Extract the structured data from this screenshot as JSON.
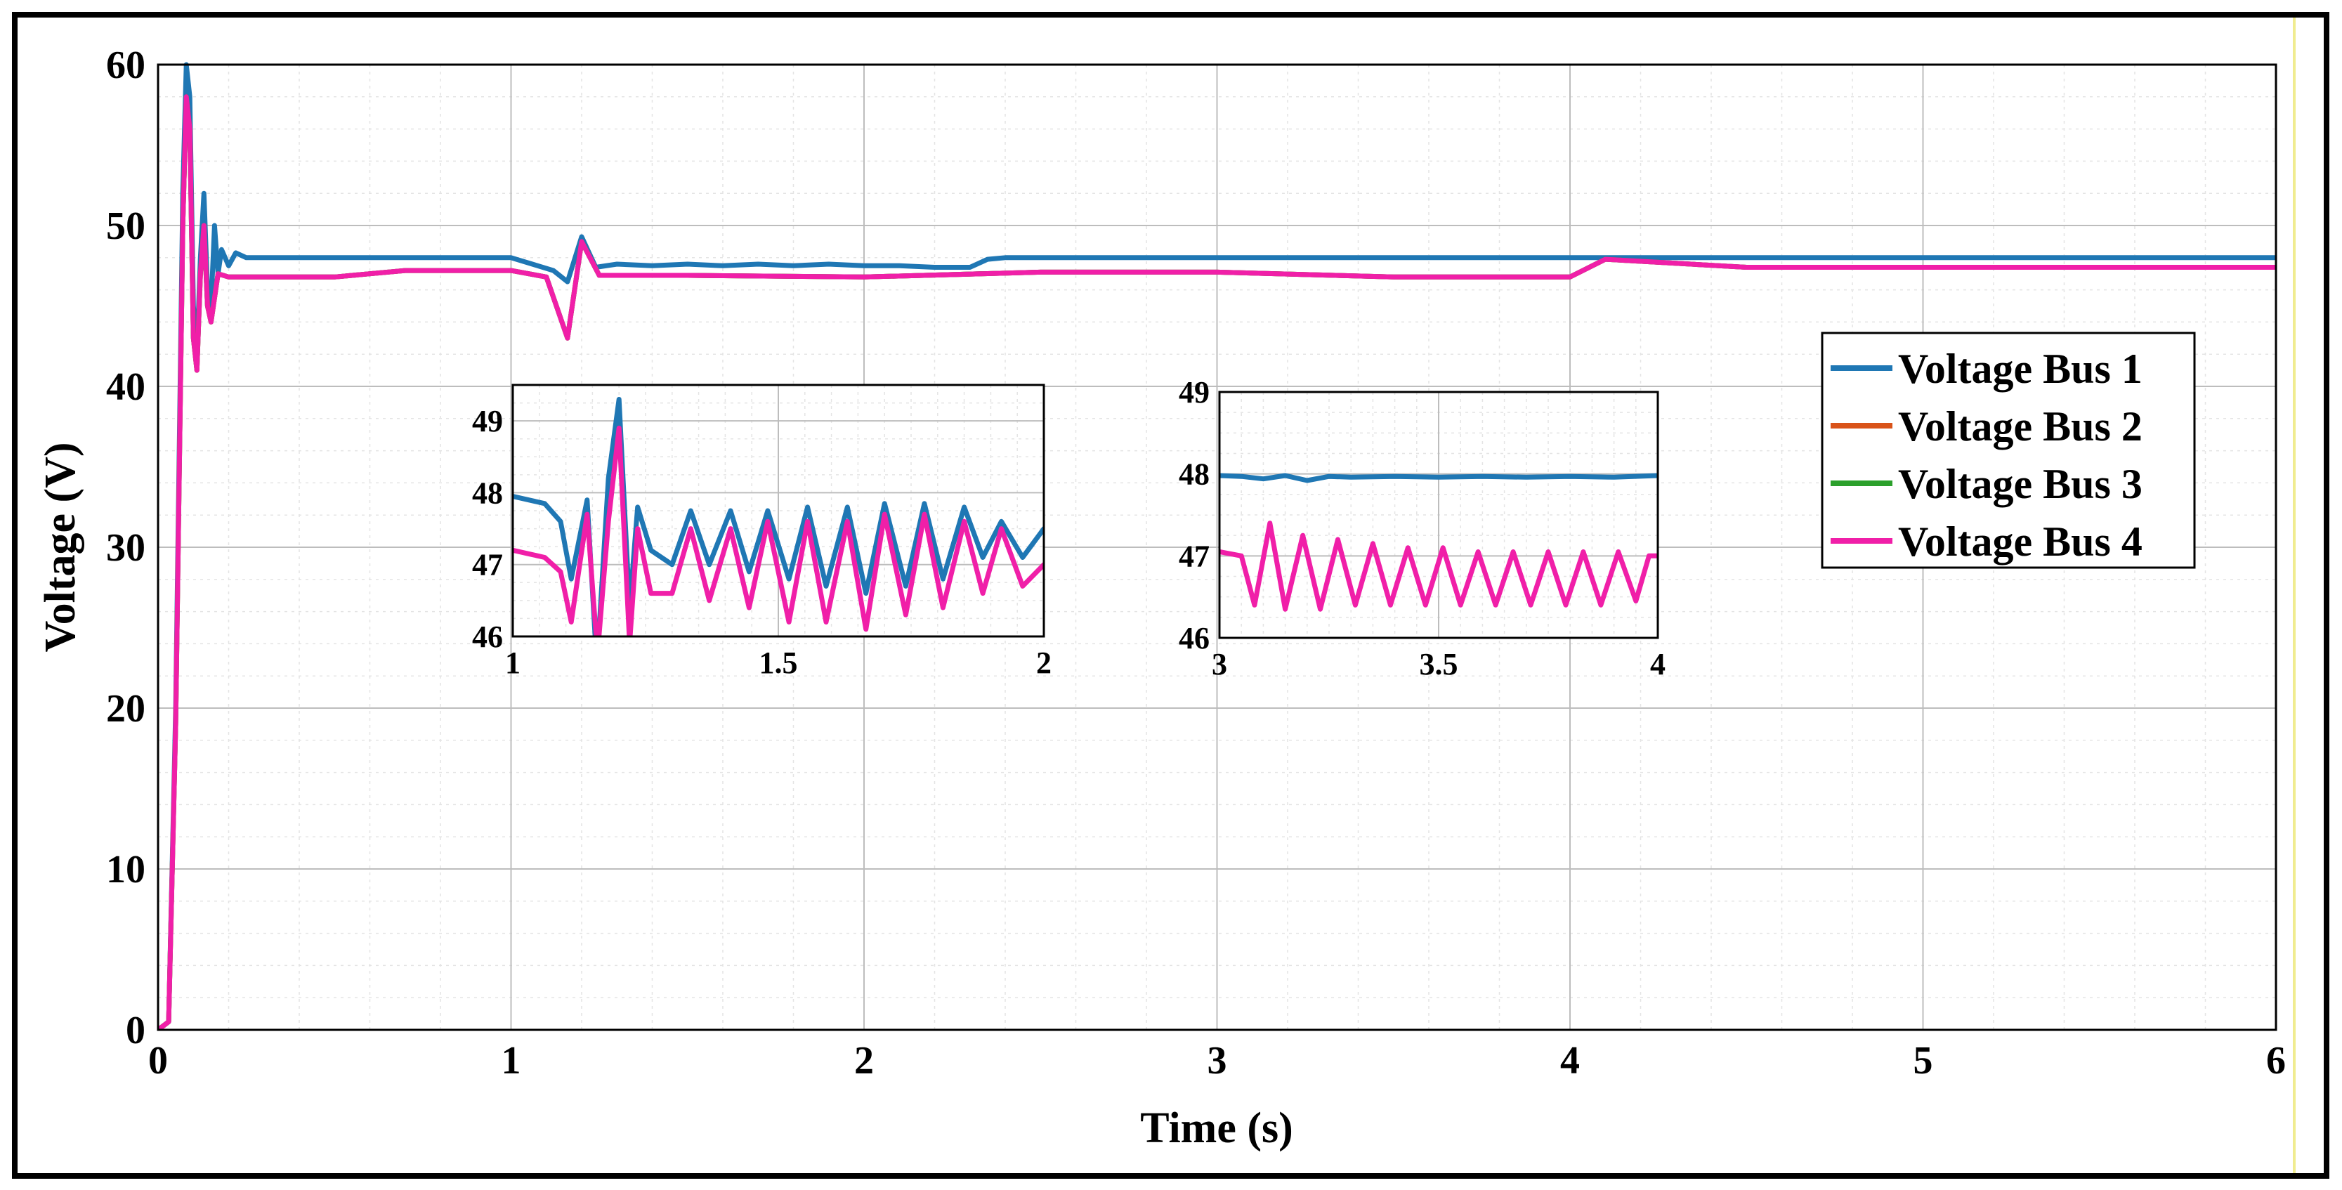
{
  "chart_data": {
    "type": "line",
    "title": "",
    "xlabel": "Time (s)",
    "ylabel": "Voltage (V)",
    "xlim": [
      0,
      6
    ],
    "ylim": [
      0,
      60
    ],
    "x_ticks": [
      0,
      1,
      2,
      3,
      4,
      5,
      6
    ],
    "y_ticks": [
      0,
      10,
      20,
      30,
      40,
      50,
      60
    ],
    "x_tick_labels": [
      "0",
      "1",
      "2",
      "3",
      "4",
      "5",
      "6"
    ],
    "y_tick_labels": [
      "0",
      "10",
      "20",
      "30",
      "40",
      "50",
      "60"
    ],
    "grid": true,
    "legend_position": "right-middle",
    "series": [
      {
        "name": "Voltage Bus 1",
        "color": "#1f77b4",
        "x": [
          0,
          0.03,
          0.05,
          0.07,
          0.08,
          0.09,
          0.1,
          0.11,
          0.12,
          0.13,
          0.14,
          0.15,
          0.16,
          0.17,
          0.18,
          0.2,
          0.22,
          0.25,
          0.3,
          0.5,
          1.0,
          1.12,
          1.16,
          1.2,
          1.24,
          1.3,
          1.4,
          1.5,
          1.6,
          1.7,
          1.8,
          1.9,
          2.0,
          2.1,
          2.2,
          2.3,
          2.35,
          2.4,
          3.0,
          3.5,
          4.0,
          4.5,
          5.0,
          5.5,
          6.0
        ],
        "values": [
          0,
          0.5,
          20,
          52,
          60,
          58,
          45,
          42,
          48,
          52,
          46,
          45,
          50,
          47,
          48.5,
          47.5,
          48.3,
          48,
          48,
          48,
          48,
          47.2,
          46.5,
          49.3,
          47.4,
          47.6,
          47.5,
          47.6,
          47.5,
          47.6,
          47.5,
          47.6,
          47.5,
          47.5,
          47.4,
          47.4,
          47.9,
          48,
          48,
          48,
          48,
          48,
          48,
          48,
          48
        ]
      },
      {
        "name": "Voltage Bus 2",
        "color": "#d95319",
        "x": [
          0,
          0.03,
          0.05,
          0.07,
          0.08,
          0.09,
          0.1,
          0.11,
          0.12,
          0.13,
          0.14,
          0.15,
          0.17,
          0.2,
          0.25,
          0.5,
          0.7,
          1.0,
          1.1,
          1.16,
          1.2,
          1.25,
          1.5,
          2.0,
          2.5,
          3.0,
          3.5,
          4.0,
          4.1,
          4.5,
          5.0,
          6.0
        ],
        "values": [
          0,
          0.5,
          19,
          50,
          58,
          56,
          43,
          41,
          47,
          50,
          45,
          44,
          47,
          46.8,
          46.8,
          46.8,
          47.2,
          47.2,
          46.8,
          43,
          49,
          46.9,
          46.9,
          46.8,
          47.1,
          47.1,
          46.8,
          46.8,
          47.9,
          47.4,
          47.4,
          47.4
        ]
      },
      {
        "name": "Voltage Bus 3",
        "color": "#2ca02c",
        "x": [
          0,
          0.03,
          0.05,
          0.07,
          0.08,
          0.09,
          0.1,
          0.11,
          0.12,
          0.13,
          0.14,
          0.15,
          0.17,
          0.2,
          0.25,
          0.5,
          0.7,
          1.0,
          1.1,
          1.16,
          1.2,
          1.25,
          1.5,
          2.0,
          2.5,
          3.0,
          3.5,
          4.0,
          4.1,
          4.5,
          5.0,
          6.0
        ],
        "values": [
          0,
          0.5,
          19,
          50,
          58,
          56,
          43,
          41,
          47,
          50,
          45,
          44,
          47,
          46.8,
          46.8,
          46.8,
          47.2,
          47.2,
          46.8,
          43,
          49,
          46.9,
          46.9,
          46.8,
          47.1,
          47.1,
          46.8,
          46.8,
          47.9,
          47.4,
          47.4,
          47.4
        ]
      },
      {
        "name": "Voltage Bus 4",
        "color": "#f01fa8",
        "x": [
          0,
          0.03,
          0.05,
          0.07,
          0.08,
          0.09,
          0.1,
          0.11,
          0.12,
          0.13,
          0.14,
          0.15,
          0.17,
          0.2,
          0.25,
          0.5,
          0.7,
          1.0,
          1.1,
          1.16,
          1.2,
          1.25,
          1.5,
          2.0,
          2.5,
          3.0,
          3.5,
          4.0,
          4.1,
          4.5,
          5.0,
          6.0
        ],
        "values": [
          0,
          0.5,
          19,
          50,
          58,
          56,
          43,
          41,
          47,
          50,
          45,
          44,
          47,
          46.8,
          46.8,
          46.8,
          47.2,
          47.2,
          46.8,
          43,
          49,
          46.9,
          46.9,
          46.8,
          47.1,
          47.1,
          46.8,
          46.8,
          47.9,
          47.4,
          47.4,
          47.4
        ]
      }
    ],
    "insets": [
      {
        "name": "inset-1-2s",
        "xlim": [
          1,
          2
        ],
        "ylim": [
          46,
          49.5
        ],
        "x_ticks": [
          1,
          1.5,
          2
        ],
        "y_ticks": [
          46,
          47,
          48,
          49
        ],
        "x_tick_labels": [
          "1",
          "1.5",
          "2"
        ],
        "y_tick_labels": [
          "46",
          "47",
          "48",
          "49"
        ],
        "series": [
          {
            "name": "Voltage Bus 1",
            "color": "#1f77b4",
            "x": [
              1.0,
              1.03,
              1.06,
              1.09,
              1.11,
              1.14,
              1.155,
              1.16,
              1.18,
              1.2,
              1.22,
              1.235,
              1.26,
              1.3,
              1.335,
              1.37,
              1.41,
              1.445,
              1.48,
              1.52,
              1.555,
              1.59,
              1.63,
              1.665,
              1.7,
              1.74,
              1.775,
              1.81,
              1.85,
              1.885,
              1.92,
              1.96,
              2.0
            ],
            "values": [
              47.95,
              47.9,
              47.85,
              47.6,
              46.8,
              47.9,
              46.0,
              45.8,
              48.2,
              49.3,
              46.4,
              47.8,
              47.2,
              47.0,
              47.75,
              47.0,
              47.75,
              46.9,
              47.75,
              46.8,
              47.8,
              46.7,
              47.8,
              46.6,
              47.85,
              46.7,
              47.85,
              46.8,
              47.8,
              47.1,
              47.6,
              47.1,
              47.5
            ]
          },
          {
            "name": "Voltage Bus 4",
            "color": "#f01fa8",
            "x": [
              1.0,
              1.03,
              1.06,
              1.09,
              1.11,
              1.14,
              1.155,
              1.16,
              1.18,
              1.2,
              1.22,
              1.235,
              1.26,
              1.3,
              1.335,
              1.37,
              1.41,
              1.445,
              1.48,
              1.52,
              1.555,
              1.59,
              1.63,
              1.665,
              1.7,
              1.74,
              1.775,
              1.81,
              1.85,
              1.885,
              1.92,
              1.96,
              2.0
            ],
            "values": [
              47.2,
              47.15,
              47.1,
              46.9,
              46.2,
              47.7,
              46.2,
              45.8,
              47.6,
              48.9,
              45.9,
              47.5,
              46.6,
              46.6,
              47.5,
              46.5,
              47.5,
              46.4,
              47.6,
              46.2,
              47.6,
              46.2,
              47.6,
              46.1,
              47.7,
              46.3,
              47.7,
              46.4,
              47.6,
              46.6,
              47.5,
              46.7,
              47.0
            ]
          }
        ]
      },
      {
        "name": "inset-3-4s",
        "xlim": [
          3,
          4
        ],
        "ylim": [
          46,
          49
        ],
        "x_ticks": [
          3,
          3.5,
          4
        ],
        "y_ticks": [
          46,
          47,
          48,
          49
        ],
        "x_tick_labels": [
          "3",
          "3.5",
          "4"
        ],
        "y_tick_labels": [
          "46",
          "47",
          "48",
          "49"
        ],
        "series": [
          {
            "name": "Voltage Bus 1",
            "color": "#1f77b4",
            "x": [
              3.0,
              3.05,
              3.1,
              3.15,
              3.2,
              3.25,
              3.3,
              3.4,
              3.5,
              3.6,
              3.7,
              3.8,
              3.9,
              4.0
            ],
            "values": [
              47.98,
              47.97,
              47.94,
              47.98,
              47.92,
              47.97,
              47.96,
              47.97,
              47.96,
              47.97,
              47.96,
              47.97,
              47.96,
              47.98
            ]
          },
          {
            "name": "Voltage Bus 4",
            "color": "#f01fa8",
            "x": [
              3.0,
              3.05,
              3.08,
              3.115,
              3.15,
              3.19,
              3.23,
              3.27,
              3.31,
              3.35,
              3.39,
              3.43,
              3.47,
              3.51,
              3.55,
              3.59,
              3.63,
              3.67,
              3.71,
              3.75,
              3.79,
              3.83,
              3.87,
              3.91,
              3.95,
              3.98,
              4.0
            ],
            "values": [
              47.05,
              47.0,
              46.4,
              47.4,
              46.35,
              47.25,
              46.35,
              47.2,
              46.4,
              47.15,
              46.4,
              47.1,
              46.4,
              47.1,
              46.4,
              47.05,
              46.4,
              47.05,
              46.4,
              47.05,
              46.4,
              47.05,
              46.4,
              47.05,
              46.45,
              47.0,
              47.0
            ]
          }
        ]
      }
    ]
  }
}
